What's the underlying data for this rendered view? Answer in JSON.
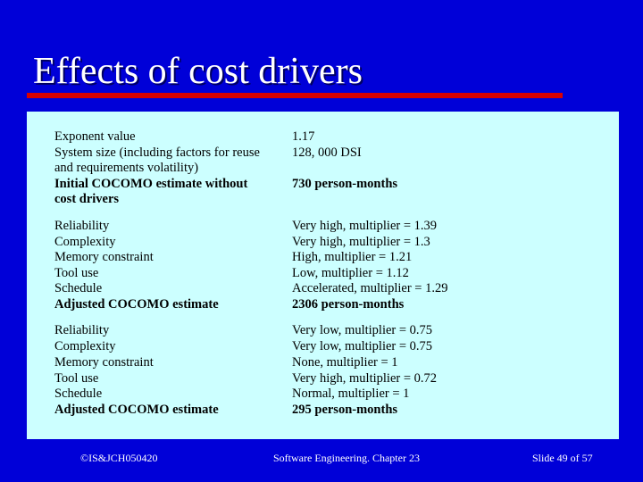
{
  "slide": {
    "title": "Effects of cost drivers",
    "footer_left": "©IS&JCH050420",
    "footer_center": "Software Engineering. Chapter 23",
    "footer_right": "Slide 49 of 57"
  },
  "table": {
    "rows": [
      {
        "label": "Exponent value",
        "value": "1.17"
      },
      {
        "label": "System size (including factors for reuse",
        "value": "128, 000 DSI"
      },
      {
        "label": "and requirements volatility)",
        "value": ""
      },
      {
        "label": "Initial COCOMO estimate without",
        "value": "730 person-months"
      },
      {
        "label": "cost drivers",
        "value": ""
      },
      {
        "label": "Reliability",
        "value": "Very high, multiplier = 1.39"
      },
      {
        "label": "Complexity",
        "value": "Very high, multiplier = 1.3"
      },
      {
        "label": "Memory constraint",
        "value": "High, multiplier = 1.21"
      },
      {
        "label": "Tool use",
        "value": "Low, multiplier = 1.12"
      },
      {
        "label": "Schedule",
        "value": "Accelerated, multiplier = 1.29"
      },
      {
        "label": "Adjusted COCOMO estimate",
        "value": "2306 person-months"
      },
      {
        "label": "Reliability",
        "value": "Very low, multiplier = 0.75"
      },
      {
        "label": "Complexity",
        "value": "Very low, multiplier = 0.75"
      },
      {
        "label": "Memory constraint",
        "value": "None, multiplier = 1"
      },
      {
        "label": "Tool use",
        "value": "Very high, multiplier = 0.72"
      },
      {
        "label": "Schedule",
        "value": "Normal, multiplier = 1"
      },
      {
        "label": "Adjusted COCOMO estimate",
        "value": "295 person-months"
      }
    ]
  }
}
